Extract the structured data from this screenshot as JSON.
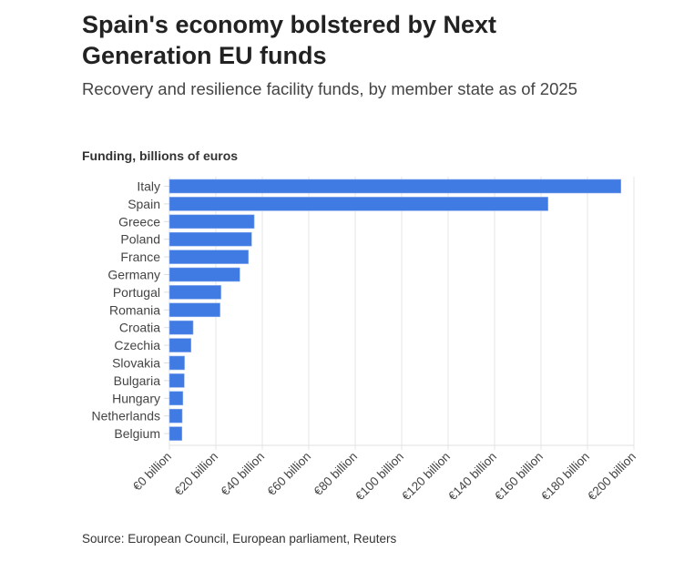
{
  "title": "Spain's economy bolstered by Next Generation EU funds",
  "subtitle": "Recovery and resilience facility funds, by member state as of 2025",
  "source": "Source: European Council, European parliament, Reuters",
  "colors": {
    "bar": "#3f7be3",
    "grid": "#e6e6e6"
  },
  "chart_data": {
    "type": "bar",
    "orientation": "horizontal",
    "title": "Spain's economy bolstered by Next Generation EU funds",
    "xlabel": "",
    "ylabel": "Funding, billions of euros",
    "categories": [
      "Italy",
      "Spain",
      "Greece",
      "Poland",
      "France",
      "Germany",
      "Portugal",
      "Romania",
      "Croatia",
      "Czechia",
      "Slovakia",
      "Bulgaria",
      "Hungary",
      "Netherlands",
      "Belgium"
    ],
    "values": [
      194.4,
      163,
      36.5,
      35.4,
      34,
      30.3,
      22.2,
      21.8,
      10.2,
      9.3,
      6.5,
      6.4,
      5.8,
      5.5,
      5.4
    ],
    "xlim": [
      0,
      200
    ],
    "xticks": [
      0,
      20,
      40,
      60,
      80,
      100,
      120,
      140,
      160,
      180,
      200
    ],
    "xtick_labels": [
      "€0 billion",
      "€20 billion",
      "€40 billion",
      "€60 billion",
      "€80 billion",
      "€100 billion",
      "€120 billion",
      "€140 billion",
      "€160 billion",
      "€180 billion",
      "€200 billion"
    ],
    "grid": true,
    "legend": "none"
  }
}
